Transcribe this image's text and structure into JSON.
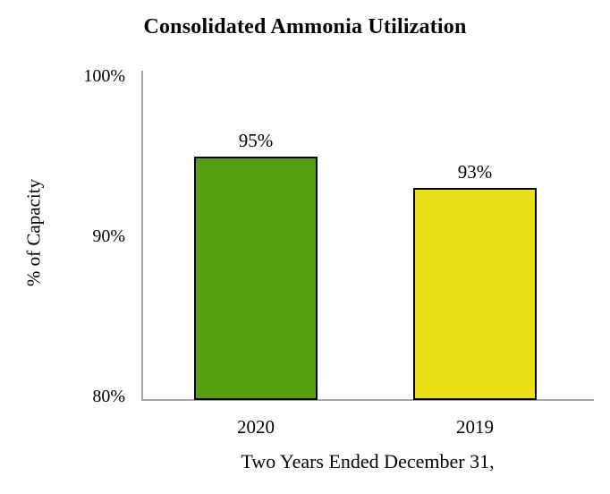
{
  "page": {
    "background_color": "#ffffff",
    "text_color": "#000000"
  },
  "chart_data": {
    "type": "bar",
    "title": "Consolidated Ammonia Utilization",
    "xlabel": "Two Years Ended December 31,",
    "ylabel": "% of Capacity",
    "categories": [
      "2020",
      "2019"
    ],
    "values": [
      95,
      93
    ],
    "value_labels": [
      "95%",
      "93%"
    ],
    "series": [
      {
        "name": "2020",
        "values": [
          95
        ],
        "color": "#55A00E"
      },
      {
        "name": "2019",
        "values": [
          93
        ],
        "color": "#EBDF16"
      }
    ],
    "bar_colors": [
      "#55A00E",
      "#EBDF16"
    ],
    "bar_border_color": "#000000",
    "ylim": [
      80,
      100
    ],
    "yticks": [
      {
        "value": 100,
        "label": "100%"
      },
      {
        "value": 90,
        "label": "90%"
      },
      {
        "value": 80,
        "label": "80%"
      }
    ],
    "axis_color": "#A6A6A6",
    "grid": false,
    "legend": "none"
  }
}
